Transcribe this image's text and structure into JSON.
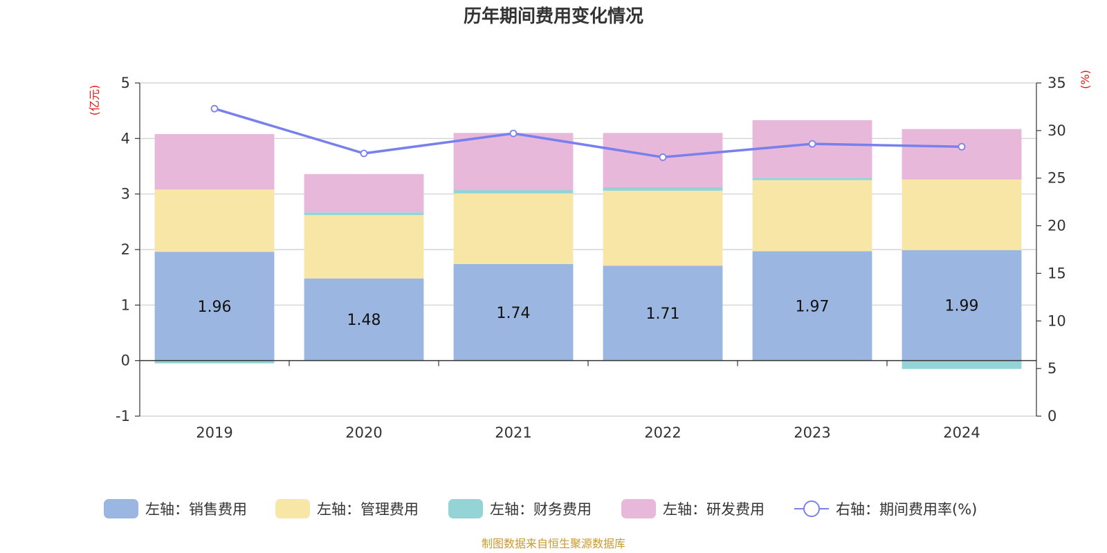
{
  "chart_data": {
    "type": "bar",
    "title": "历年期间费用变化情况",
    "categories": [
      "2019",
      "2020",
      "2021",
      "2022",
      "2023",
      "2024"
    ],
    "left_axis": {
      "unit": "(亿元)",
      "ylim": [
        -1,
        5
      ],
      "ticks": [
        "-1",
        "0",
        "1",
        "2",
        "3",
        "4",
        "5"
      ]
    },
    "right_axis": {
      "unit": "(%)",
      "ylim": [
        0,
        35
      ],
      "ticks": [
        "0",
        "5",
        "10",
        "15",
        "20",
        "25",
        "30",
        "35"
      ]
    },
    "series": [
      {
        "name": "左轴：销售费用",
        "axis": "left",
        "kind": "bar",
        "color": "#9bb6e0",
        "values": [
          1.96,
          1.48,
          1.74,
          1.71,
          1.97,
          1.99
        ],
        "labels": [
          "1.96",
          "1.48",
          "1.74",
          "1.71",
          "1.97",
          "1.99"
        ]
      },
      {
        "name": "左轴：管理费用",
        "axis": "left",
        "kind": "bar",
        "color": "#f7e6a6",
        "values": [
          1.12,
          1.14,
          1.27,
          1.35,
          1.28,
          1.27
        ]
      },
      {
        "name": "左轴：财务费用",
        "axis": "left",
        "kind": "bar",
        "color": "#94d3d6",
        "values": [
          -0.05,
          0.05,
          0.06,
          0.06,
          0.04,
          -0.15
        ]
      },
      {
        "name": "左轴：研发费用",
        "axis": "left",
        "kind": "bar",
        "color": "#e7b8d9",
        "values": [
          1.0,
          0.69,
          1.03,
          0.98,
          1.04,
          0.91
        ]
      },
      {
        "name": "右轴：期间费用率(%)",
        "axis": "right",
        "kind": "line",
        "color": "#7880ed",
        "values": [
          32.3,
          27.6,
          29.7,
          27.2,
          28.6,
          28.3
        ]
      }
    ],
    "grid": true,
    "legend_position": "bottom"
  },
  "source_text": "制图数据来自恒生聚源数据库"
}
